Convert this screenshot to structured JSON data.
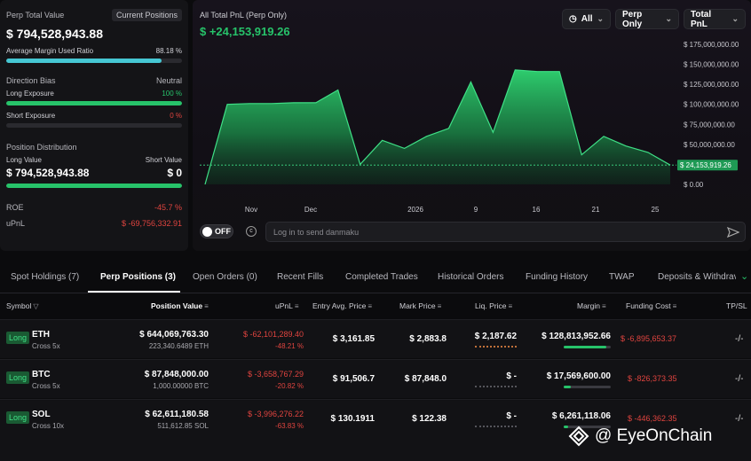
{
  "left": {
    "perp_total_label": "Perp Total Value",
    "current_positions_btn": "Current Positions",
    "perp_total_value": "$ 794,528,943.88",
    "avg_margin_label": "Average Margin Used Ratio",
    "avg_margin_value": "88.18 %",
    "avg_margin_ratio": 0.8818,
    "direction_bias_label": "Direction Bias",
    "direction_bias_value": "Neutral",
    "long_exposure_label": "Long Exposure",
    "long_exposure_value": "100 %",
    "long_exposure_ratio": 1.0,
    "short_exposure_label": "Short Exposure",
    "short_exposure_value": "0 %",
    "short_exposure_ratio": 0,
    "position_dist_label": "Position Distribution",
    "long_value_label": "Long Value",
    "short_value_label": "Short Value",
    "long_value": "$ 794,528,943.88",
    "short_value": "$ 0",
    "roe_label": "ROE",
    "roe_value": "-45.7 %",
    "upnl_label": "uPnL",
    "upnl_value": "$ -69,756,332.91"
  },
  "chart": {
    "title": "All Total PnL (Perp Only)",
    "value": "$ +24,153,919.26",
    "filter_all": "All",
    "filter_perp": "Perp Only",
    "filter_total": "Total PnL",
    "toggle_label": "OFF",
    "danmaku_placeholder": "Log in to send danmaku"
  },
  "chart_data": {
    "type": "area",
    "x_ticks": [
      "Nov",
      "Dec",
      "2026",
      "9",
      "16",
      "21",
      "25"
    ],
    "y_ticks": [
      "$ 175,000,000.00",
      "$ 150,000,000.00",
      "$ 125,000,000.00",
      "$ 100,000,000.00",
      "$ 75,000,000.00",
      "$ 50,000,000.00",
      "$ 25,000,000.00",
      "$ 0.00"
    ],
    "ylim": [
      0,
      175000000
    ],
    "current_label": "$ 24,153,919.26",
    "current_value": 24153919.26,
    "values": [
      0,
      100000000,
      101000000,
      101000000,
      102000000,
      102000000,
      118000000,
      25000000,
      55000000,
      45000000,
      60000000,
      70000000,
      128000000,
      65000000,
      143000000,
      141000000,
      141000000,
      37000000,
      60000000,
      48000000,
      40000000,
      24153919.26
    ]
  },
  "tabs": [
    {
      "label": "Spot Holdings (7)"
    },
    {
      "label": "Perp Positions (3)"
    },
    {
      "label": "Open Orders (0)"
    },
    {
      "label": "Recent Fills"
    },
    {
      "label": "Completed Trades"
    },
    {
      "label": "Historical Orders"
    },
    {
      "label": "Funding History"
    },
    {
      "label": "TWAP"
    },
    {
      "label": "Deposits & Withdrav"
    }
  ],
  "columns": {
    "symbol": "Symbol",
    "position_value": "Position Value",
    "upnl": "uPnL",
    "entry": "Entry Avg. Price",
    "mark": "Mark Price",
    "liq": "Liq. Price",
    "margin": "Margin",
    "funding": "Funding Cost",
    "tpsl": "TP/SL"
  },
  "rows": [
    {
      "side": "Long",
      "symbol": "ETH",
      "mode": "Cross 5x",
      "value": "$ 644,069,763.30",
      "qty": "223,340.6489 ETH",
      "upnl": "$ -62,101,289.40",
      "upnl_pct": "-48.21 %",
      "entry": "$ 3,161.85",
      "mark": "$ 2,883.8",
      "liq": "$ 2,187.62",
      "margin": "$ 128,813,952.66",
      "margin_ratio": 0.9,
      "funding": "$ -6,895,653.37",
      "tpsl": "-/-"
    },
    {
      "side": "Long",
      "symbol": "BTC",
      "mode": "Cross 5x",
      "value": "$ 87,848,000.00",
      "qty": "1,000.00000 BTC",
      "upnl": "$ -3,658,767.29",
      "upnl_pct": "-20.82 %",
      "entry": "$ 91,506.7",
      "mark": "$ 87,848.0",
      "liq": "$ -",
      "margin": "$ 17,569,600.00",
      "margin_ratio": 0.15,
      "funding": "$ -826,373.35",
      "tpsl": "-/-"
    },
    {
      "side": "Long",
      "symbol": "SOL",
      "mode": "Cross 10x",
      "value": "$ 62,611,180.58",
      "qty": "511,612.85 SOL",
      "upnl": "$ -3,996,276.22",
      "upnl_pct": "-63.83 %",
      "entry": "$ 130.1911",
      "mark": "$ 122.38",
      "liq": "$ -",
      "margin": "$ 6,261,118.06",
      "margin_ratio": 0.1,
      "funding": "$ -446,362.35",
      "tpsl": "-/-"
    }
  ],
  "watermark": "@ EyeOnChain"
}
